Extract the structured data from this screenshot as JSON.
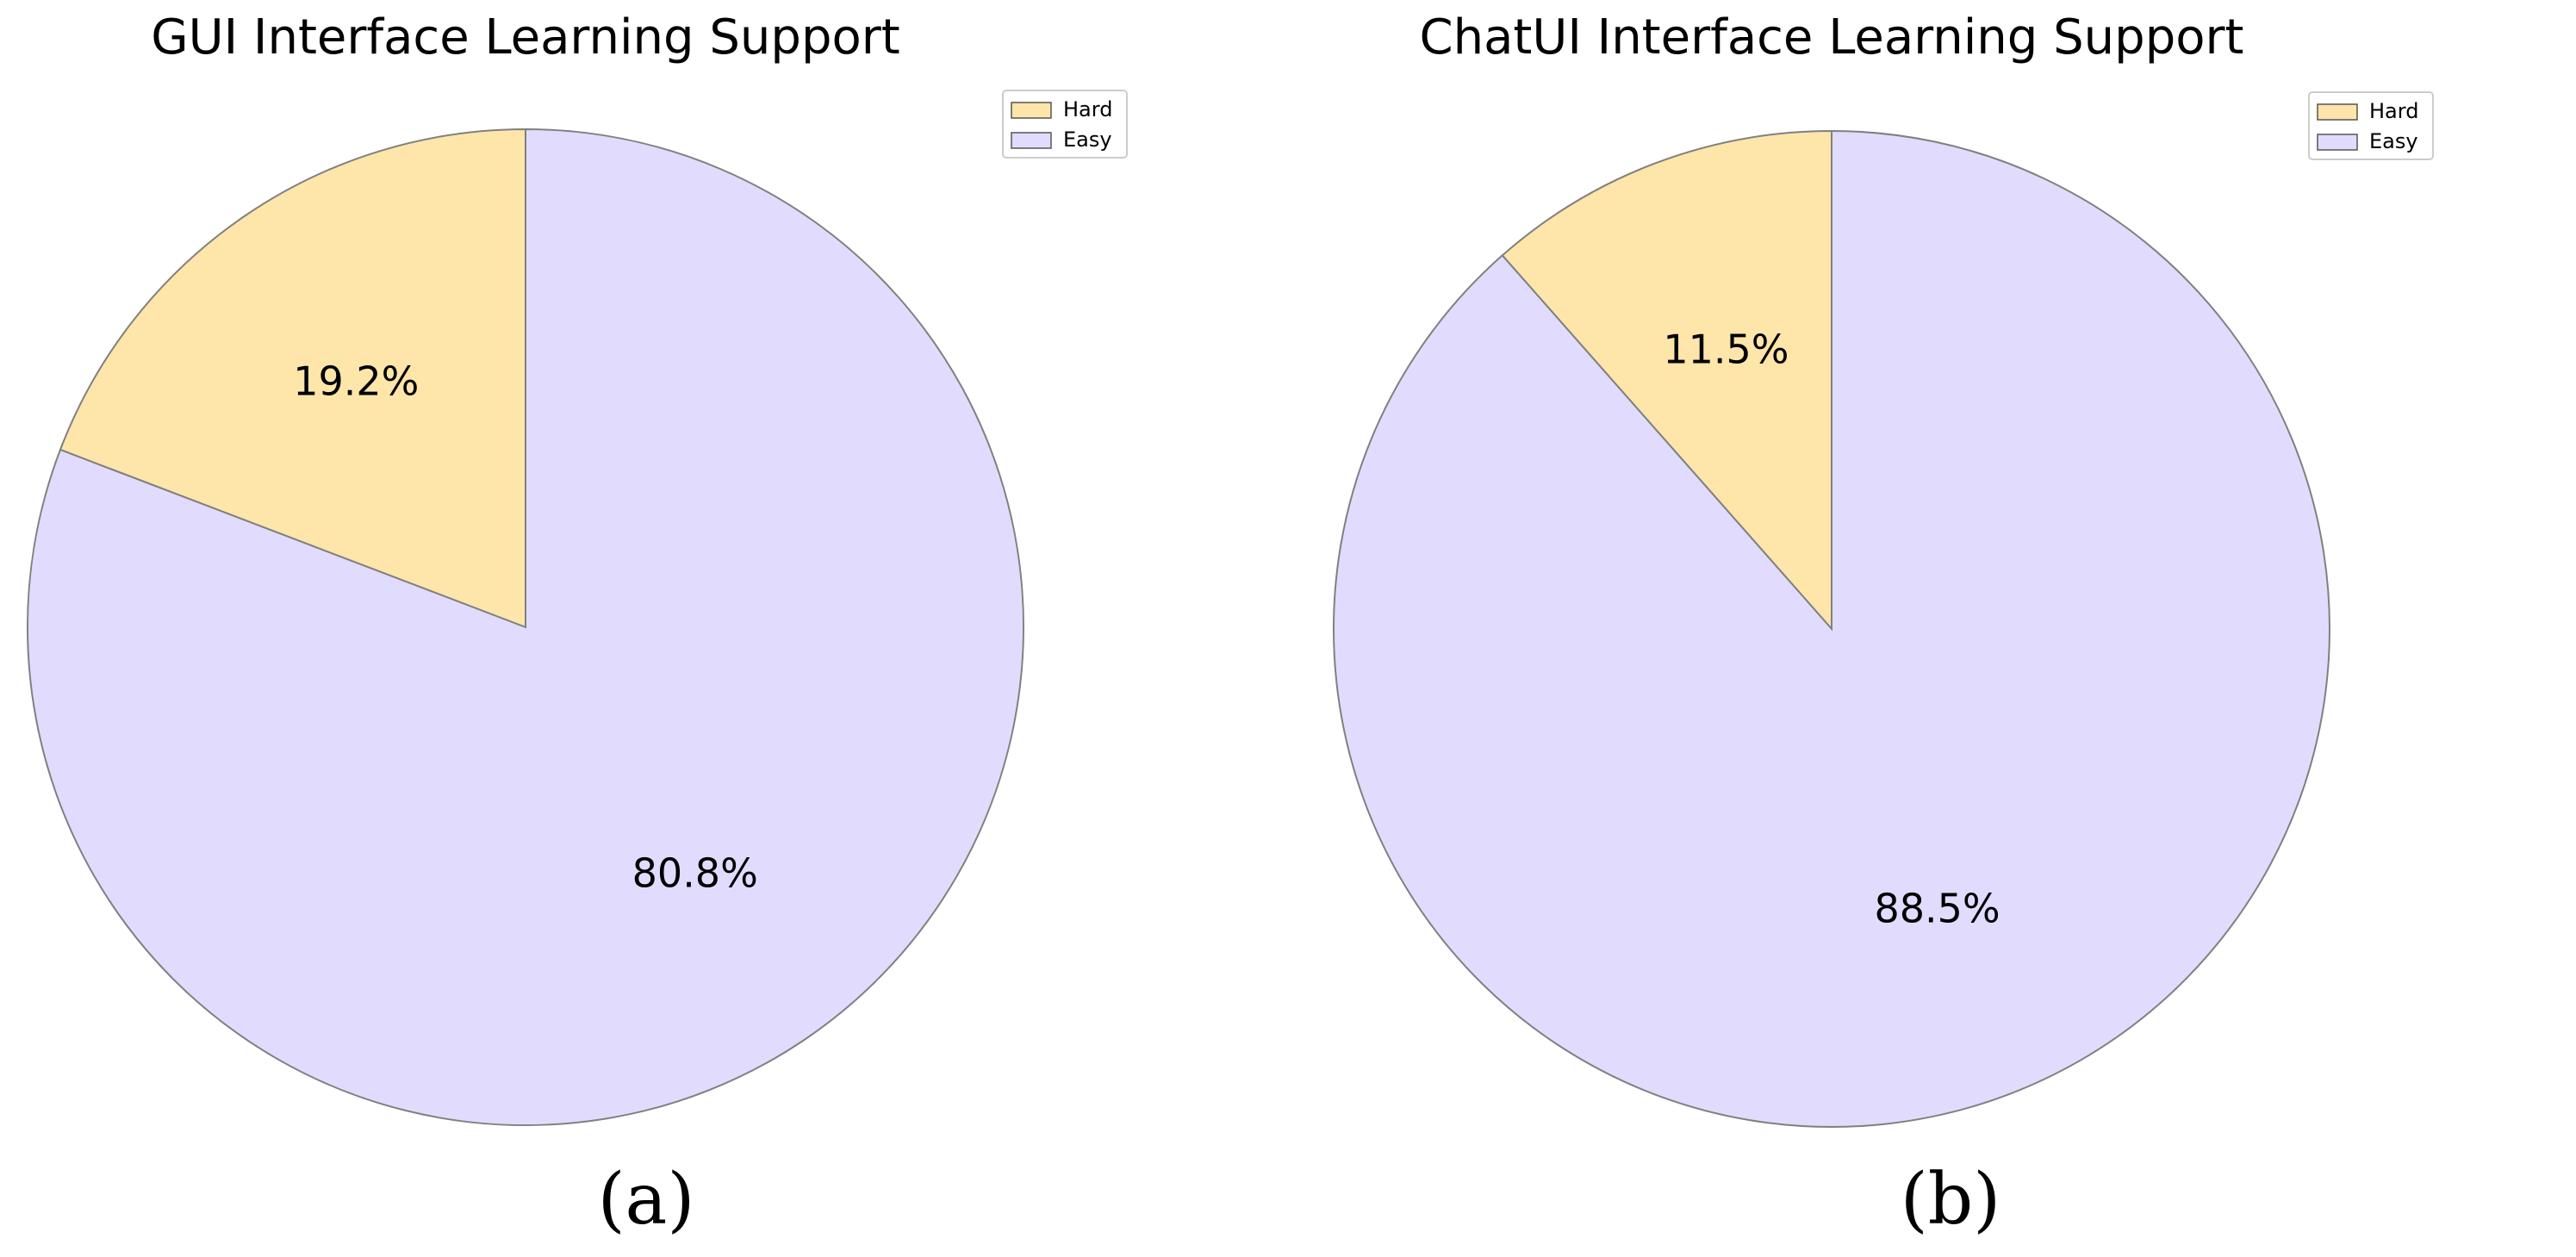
{
  "chart_data": [
    {
      "type": "pie",
      "title": "GUI Interface Learning Support",
      "caption": "(a)",
      "slices": [
        {
          "label": "Hard",
          "value": 19.2,
          "pct_label": "19.2%",
          "color": "#fee5a9"
        },
        {
          "label": "Easy",
          "value": 80.8,
          "pct_label": "80.8%",
          "color": "#e1dcfe"
        }
      ],
      "start_angle": 90,
      "direction": "counterclockwise",
      "legend": {
        "placement": "top-right",
        "entries": [
          "Hard",
          "Easy"
        ]
      }
    },
    {
      "type": "pie",
      "title": "ChatUI Interface Learning Support",
      "caption": "(b)",
      "slices": [
        {
          "label": "Hard",
          "value": 11.5,
          "pct_label": "11.5%",
          "color": "#fee5a9"
        },
        {
          "label": "Easy",
          "value": 88.5,
          "pct_label": "88.5%",
          "color": "#e1dcfe"
        }
      ],
      "start_angle": 90,
      "direction": "counterclockwise",
      "legend": {
        "placement": "top-right",
        "entries": [
          "Hard",
          "Easy"
        ]
      }
    }
  ],
  "colors": {
    "edge": "#808080",
    "legend_border": "#cccccc"
  }
}
